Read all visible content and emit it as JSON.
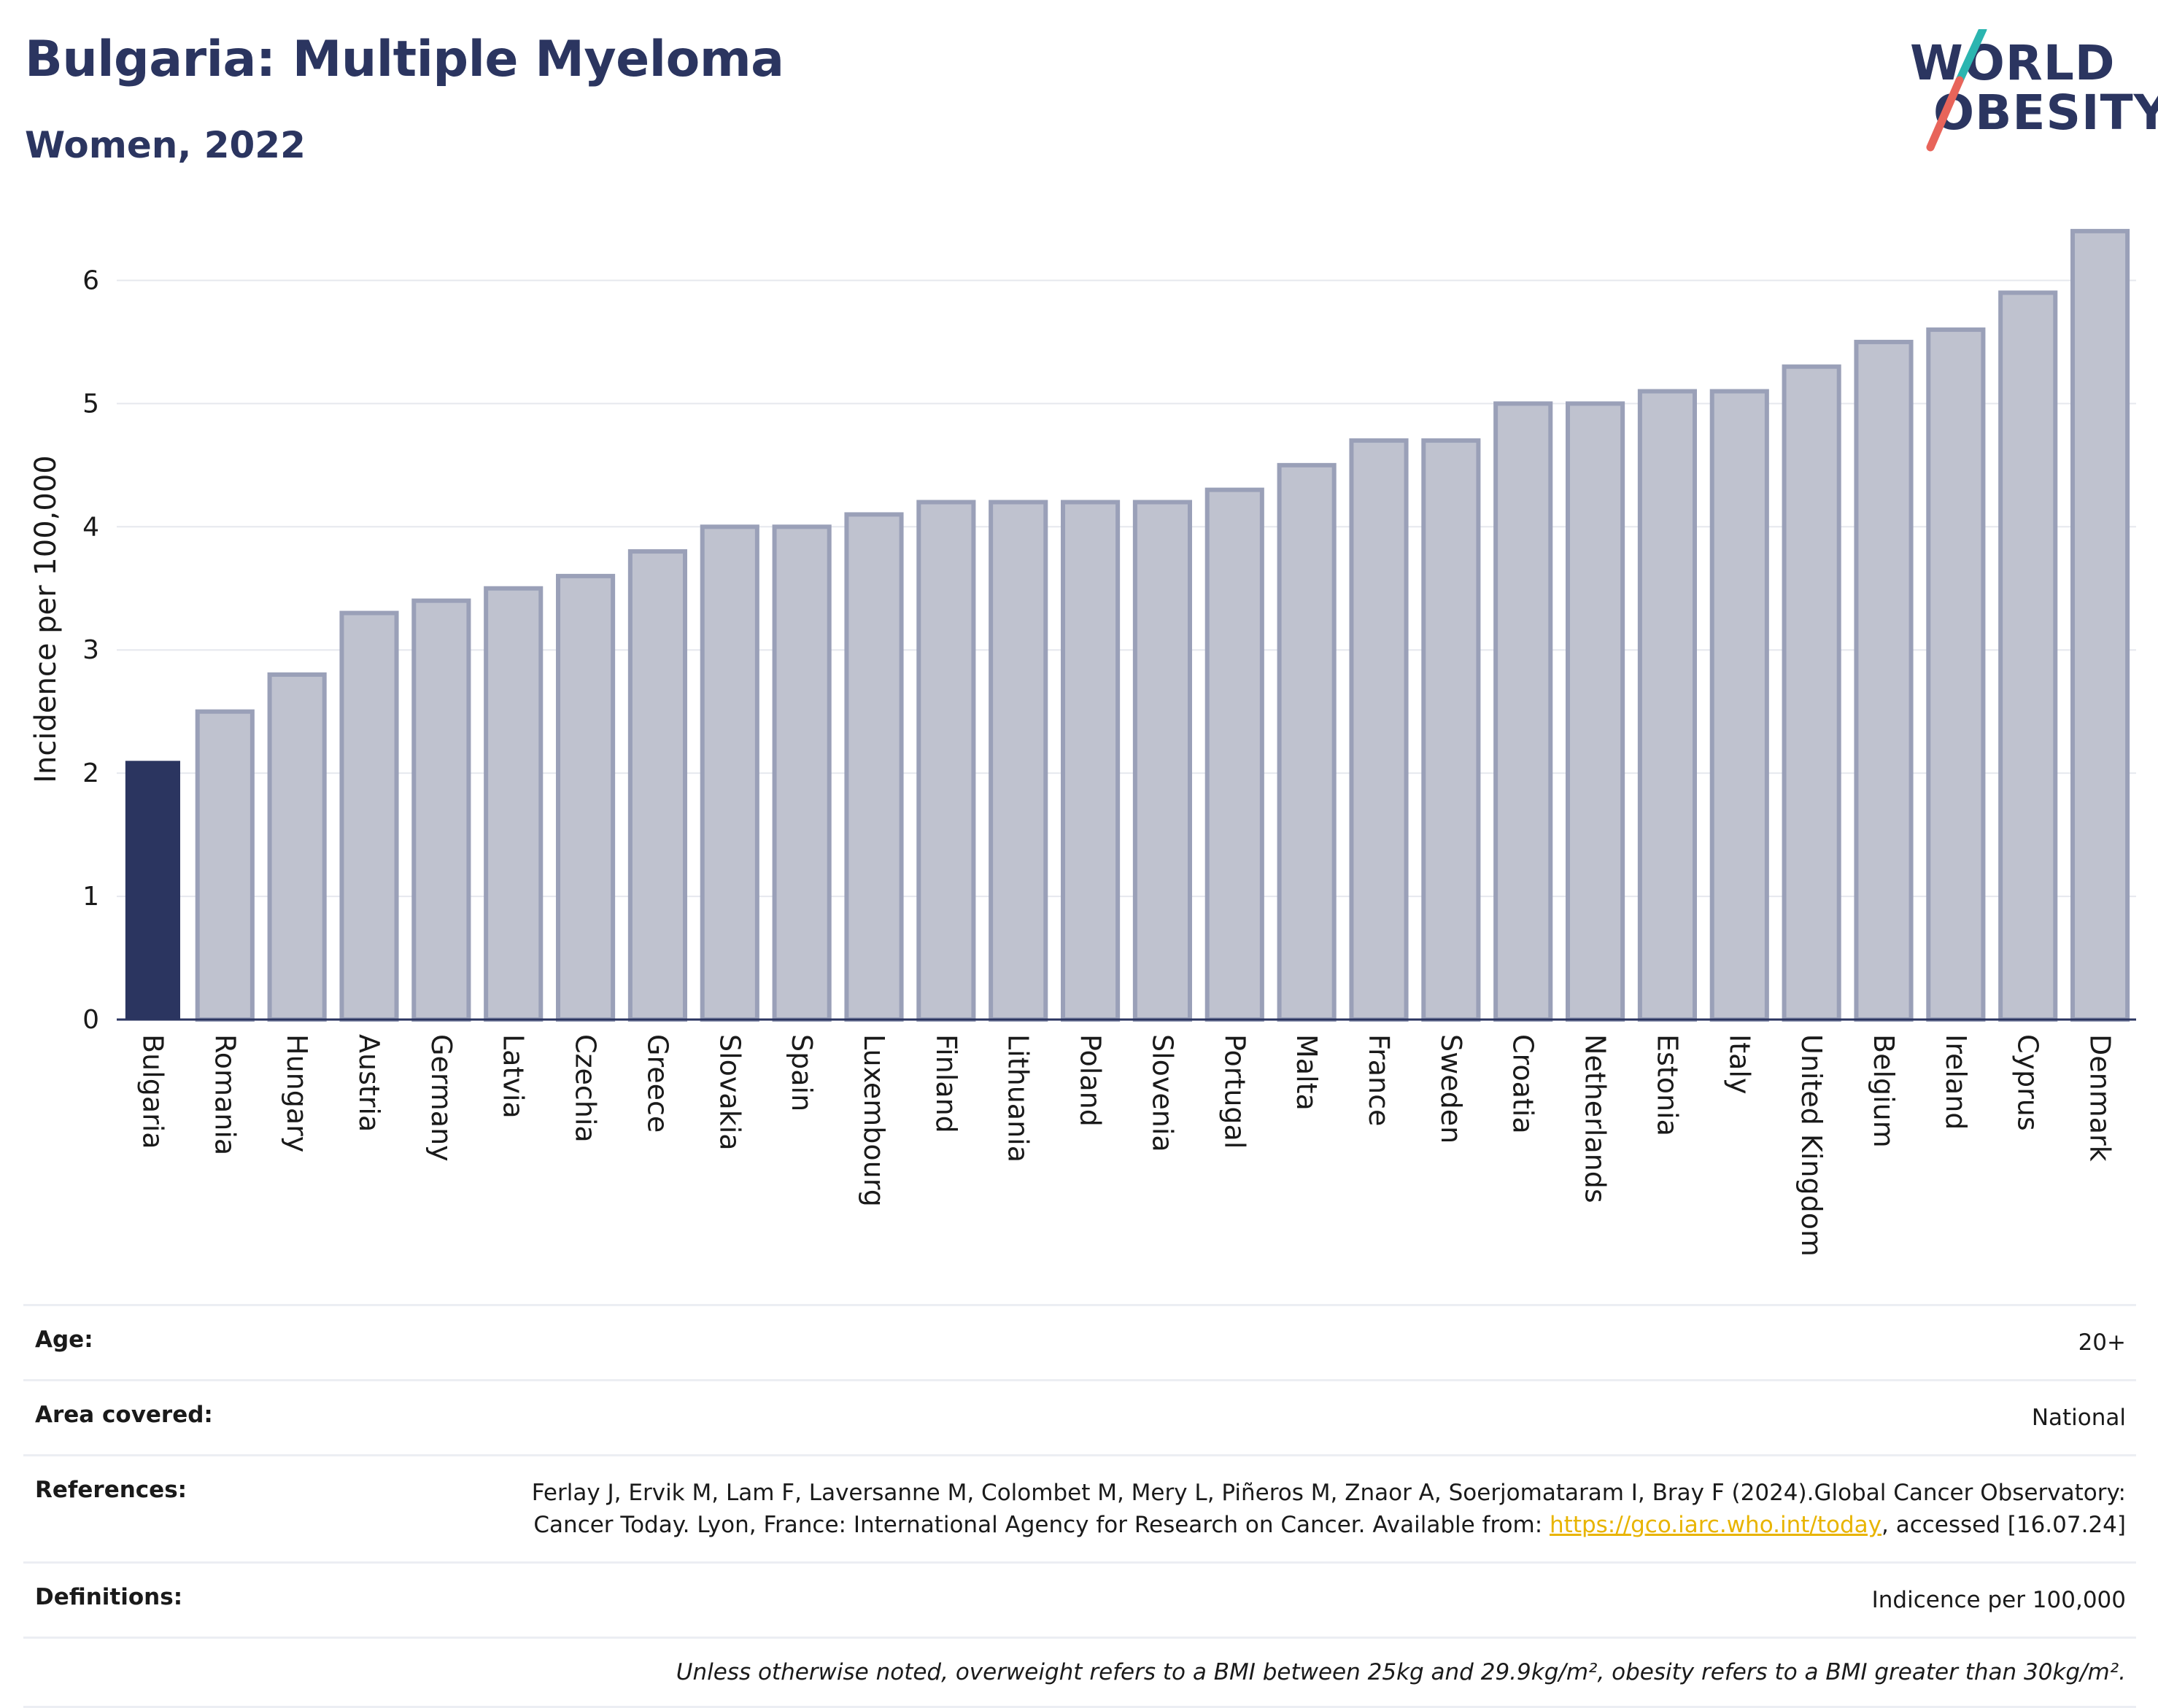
{
  "header": {
    "title": "Bulgaria: Multiple Myeloma",
    "subtitle": "Women, 2022"
  },
  "logo": {
    "line1": "WORLD",
    "line2": "OBESITY",
    "colors": {
      "text": "#2b3560",
      "slash_top": "#2bb5b0",
      "slash_bottom": "#e8645a"
    }
  },
  "chart_data": {
    "type": "bar",
    "ylabel": "Incidence per 100,000",
    "ylim": [
      0,
      6.5
    ],
    "yticks": [
      0,
      1,
      2,
      3,
      4,
      5,
      6
    ],
    "grid": true,
    "categories": [
      "Bulgaria",
      "Romania",
      "Hungary",
      "Austria",
      "Germany",
      "Latvia",
      "Czechia",
      "Greece",
      "Slovakia",
      "Spain",
      "Luxembourg",
      "Finland",
      "Lithuania",
      "Poland",
      "Slovenia",
      "Portugal",
      "Malta",
      "France",
      "Sweden",
      "Croatia",
      "Netherlands",
      "Estonia",
      "Italy",
      "United Kingdom",
      "Belgium",
      "Ireland",
      "Cyprus",
      "Denmark"
    ],
    "values": [
      2.1,
      2.5,
      2.8,
      3.3,
      3.4,
      3.5,
      3.6,
      3.8,
      4.0,
      4.0,
      4.1,
      4.2,
      4.2,
      4.2,
      4.2,
      4.3,
      4.5,
      4.7,
      4.7,
      5.0,
      5.0,
      5.1,
      5.1,
      5.3,
      5.5,
      5.6,
      5.9,
      6.4
    ],
    "highlight": "Bulgaria",
    "colors": {
      "highlight": "#2b3560",
      "other_fill": "#bfc2cf",
      "other_stroke": "#9aa0b8",
      "grid": "#e6e8ee",
      "axis": "#2b3560"
    }
  },
  "info": {
    "age_label": "Age:",
    "age_value": "20+",
    "area_label": "Area covered:",
    "area_value": "National",
    "references_label": "References:",
    "references_text": "Ferlay J, Ervik M, Lam F, Laversanne M, Colombet M, Mery L, Piñeros M, Znaor A, Soerjomataram I, Bray F (2024).Global Cancer Observatory: Cancer Today. Lyon, France: International Agency for Research on Cancer. Available from:",
    "references_link": "https://gco.iarc.who.int/today",
    "references_after": ", accessed [16.07.24]",
    "definitions_label": "Definitions:",
    "definitions_value": "Indicence per 100,000",
    "footnote": "Unless otherwise noted, overweight refers to a BMI between 25kg and 29.9kg/m², obesity refers to a BMI greater than 30kg/m²."
  }
}
